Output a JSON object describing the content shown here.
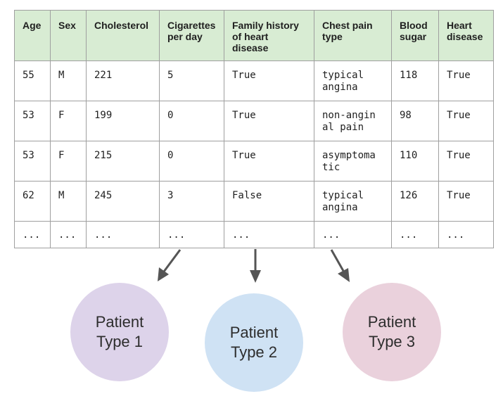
{
  "table": {
    "headers": [
      "Age",
      "Sex",
      "Cholesterol",
      "Cigarettes\nper day",
      "Family history\nof heart disease",
      "Chest pain\ntype",
      "Blood\nsugar",
      "Heart\ndisease"
    ],
    "rows": [
      [
        "55",
        "M",
        "221",
        "5",
        "True",
        "typical\nangina",
        "118",
        "True"
      ],
      [
        "53",
        "F",
        "199",
        "0",
        "True",
        "non-angin\nal pain",
        "98",
        "True"
      ],
      [
        "53",
        "F",
        "215",
        "0",
        "True",
        "asymptoma\ntic",
        "110",
        "True"
      ],
      [
        "62",
        "M",
        "245",
        "3",
        "False",
        "typical\nangina",
        "126",
        "True"
      ],
      [
        "...",
        "...",
        "...",
        "...",
        "...",
        "...",
        "...",
        "..."
      ]
    ]
  },
  "clusters": [
    {
      "line1": "Patient",
      "line2": "Type 1",
      "color": "#ddd3ea"
    },
    {
      "line1": "Patient",
      "line2": "Type 2",
      "color": "#cfe2f4"
    },
    {
      "line1": "Patient",
      "line2": "Type 3",
      "color": "#ead1dc"
    }
  ],
  "arrow_color": "#555555"
}
